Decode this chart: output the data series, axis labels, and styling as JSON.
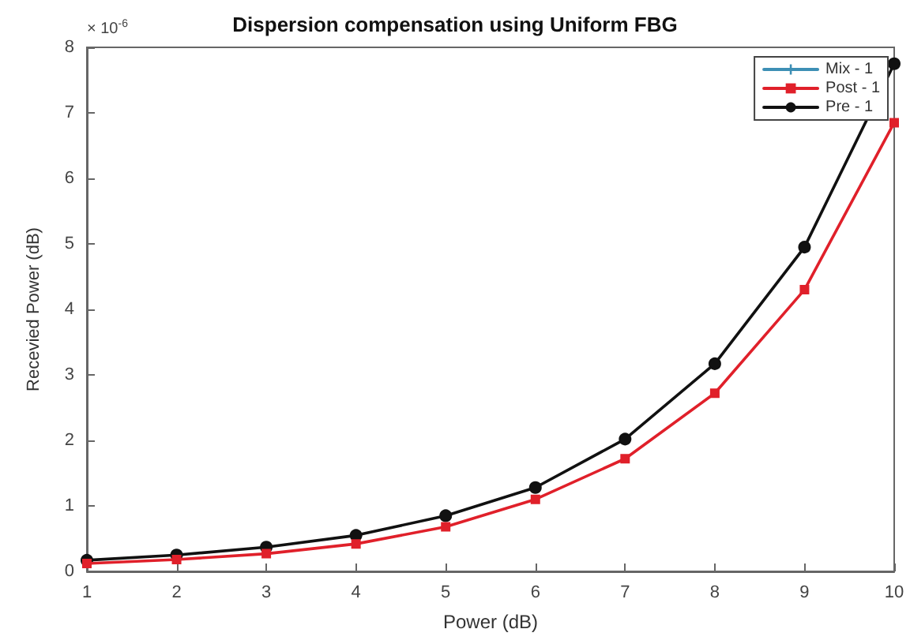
{
  "chart_data": {
    "type": "line",
    "title": "Dispersion compensation using Uniform FBG",
    "xlabel": "Power (dB)",
    "ylabel": "Recevied Power (dB)",
    "annotations": [
      "× 10$^{-6}$"
    ],
    "x": [
      1,
      2,
      3,
      4,
      5,
      6,
      7,
      8,
      9,
      10
    ],
    "series": [
      {
        "name": "Mix - 1",
        "color": "#3d8fb5",
        "marker": "cross",
        "values": [
          null,
          null,
          null,
          null,
          null,
          null,
          null,
          null,
          null,
          null
        ]
      },
      {
        "name": "Post - 1",
        "color": "#e0202a",
        "marker": "square",
        "values": [
          0.12,
          0.18,
          0.27,
          0.42,
          0.68,
          1.1,
          1.72,
          2.72,
          4.3,
          6.85
        ]
      },
      {
        "name": "Pre - 1",
        "color": "#111111",
        "marker": "circle",
        "values": [
          0.17,
          0.25,
          0.37,
          0.55,
          0.85,
          1.28,
          2.02,
          3.17,
          4.95,
          7.75
        ]
      }
    ],
    "xlim": [
      1,
      10
    ],
    "xticks": [
      1,
      2,
      3,
      4,
      5,
      6,
      7,
      8,
      9,
      10
    ],
    "ylim": [
      0,
      8
    ],
    "yticks": [
      0,
      1,
      2,
      3,
      4,
      5,
      6,
      7,
      8
    ],
    "grid": false,
    "legend": "top right",
    "line_style": "solid"
  }
}
